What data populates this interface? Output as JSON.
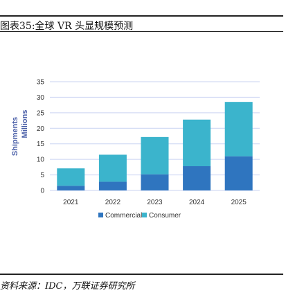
{
  "header": {
    "title": "图表35:全球 VR 头显规模预测"
  },
  "footer": {
    "source": "资料来源：IDC，万联证券研究所"
  },
  "colors": {
    "commercial": "#2f75bf",
    "consumer": "#3bb4cc",
    "grid": "#c9d3f2"
  },
  "chart_data": {
    "type": "bar",
    "stacked": true,
    "categories": [
      "2021",
      "2022",
      "2023",
      "2024",
      "2025"
    ],
    "series": [
      {
        "name": "Commercial",
        "values": [
          1.5,
          2.8,
          5.2,
          7.8,
          11.0
        ]
      },
      {
        "name": "Consumer",
        "values": [
          5.6,
          8.7,
          12.0,
          15.0,
          17.5
        ]
      }
    ],
    "ylabel_line1": "Shipments",
    "ylabel_line2": "Millions",
    "ylim": [
      0,
      35
    ],
    "yticks": [
      "0",
      "5",
      "10",
      "15",
      "20",
      "25",
      "30",
      "35"
    ],
    "grid": true,
    "legend": "bottom"
  }
}
